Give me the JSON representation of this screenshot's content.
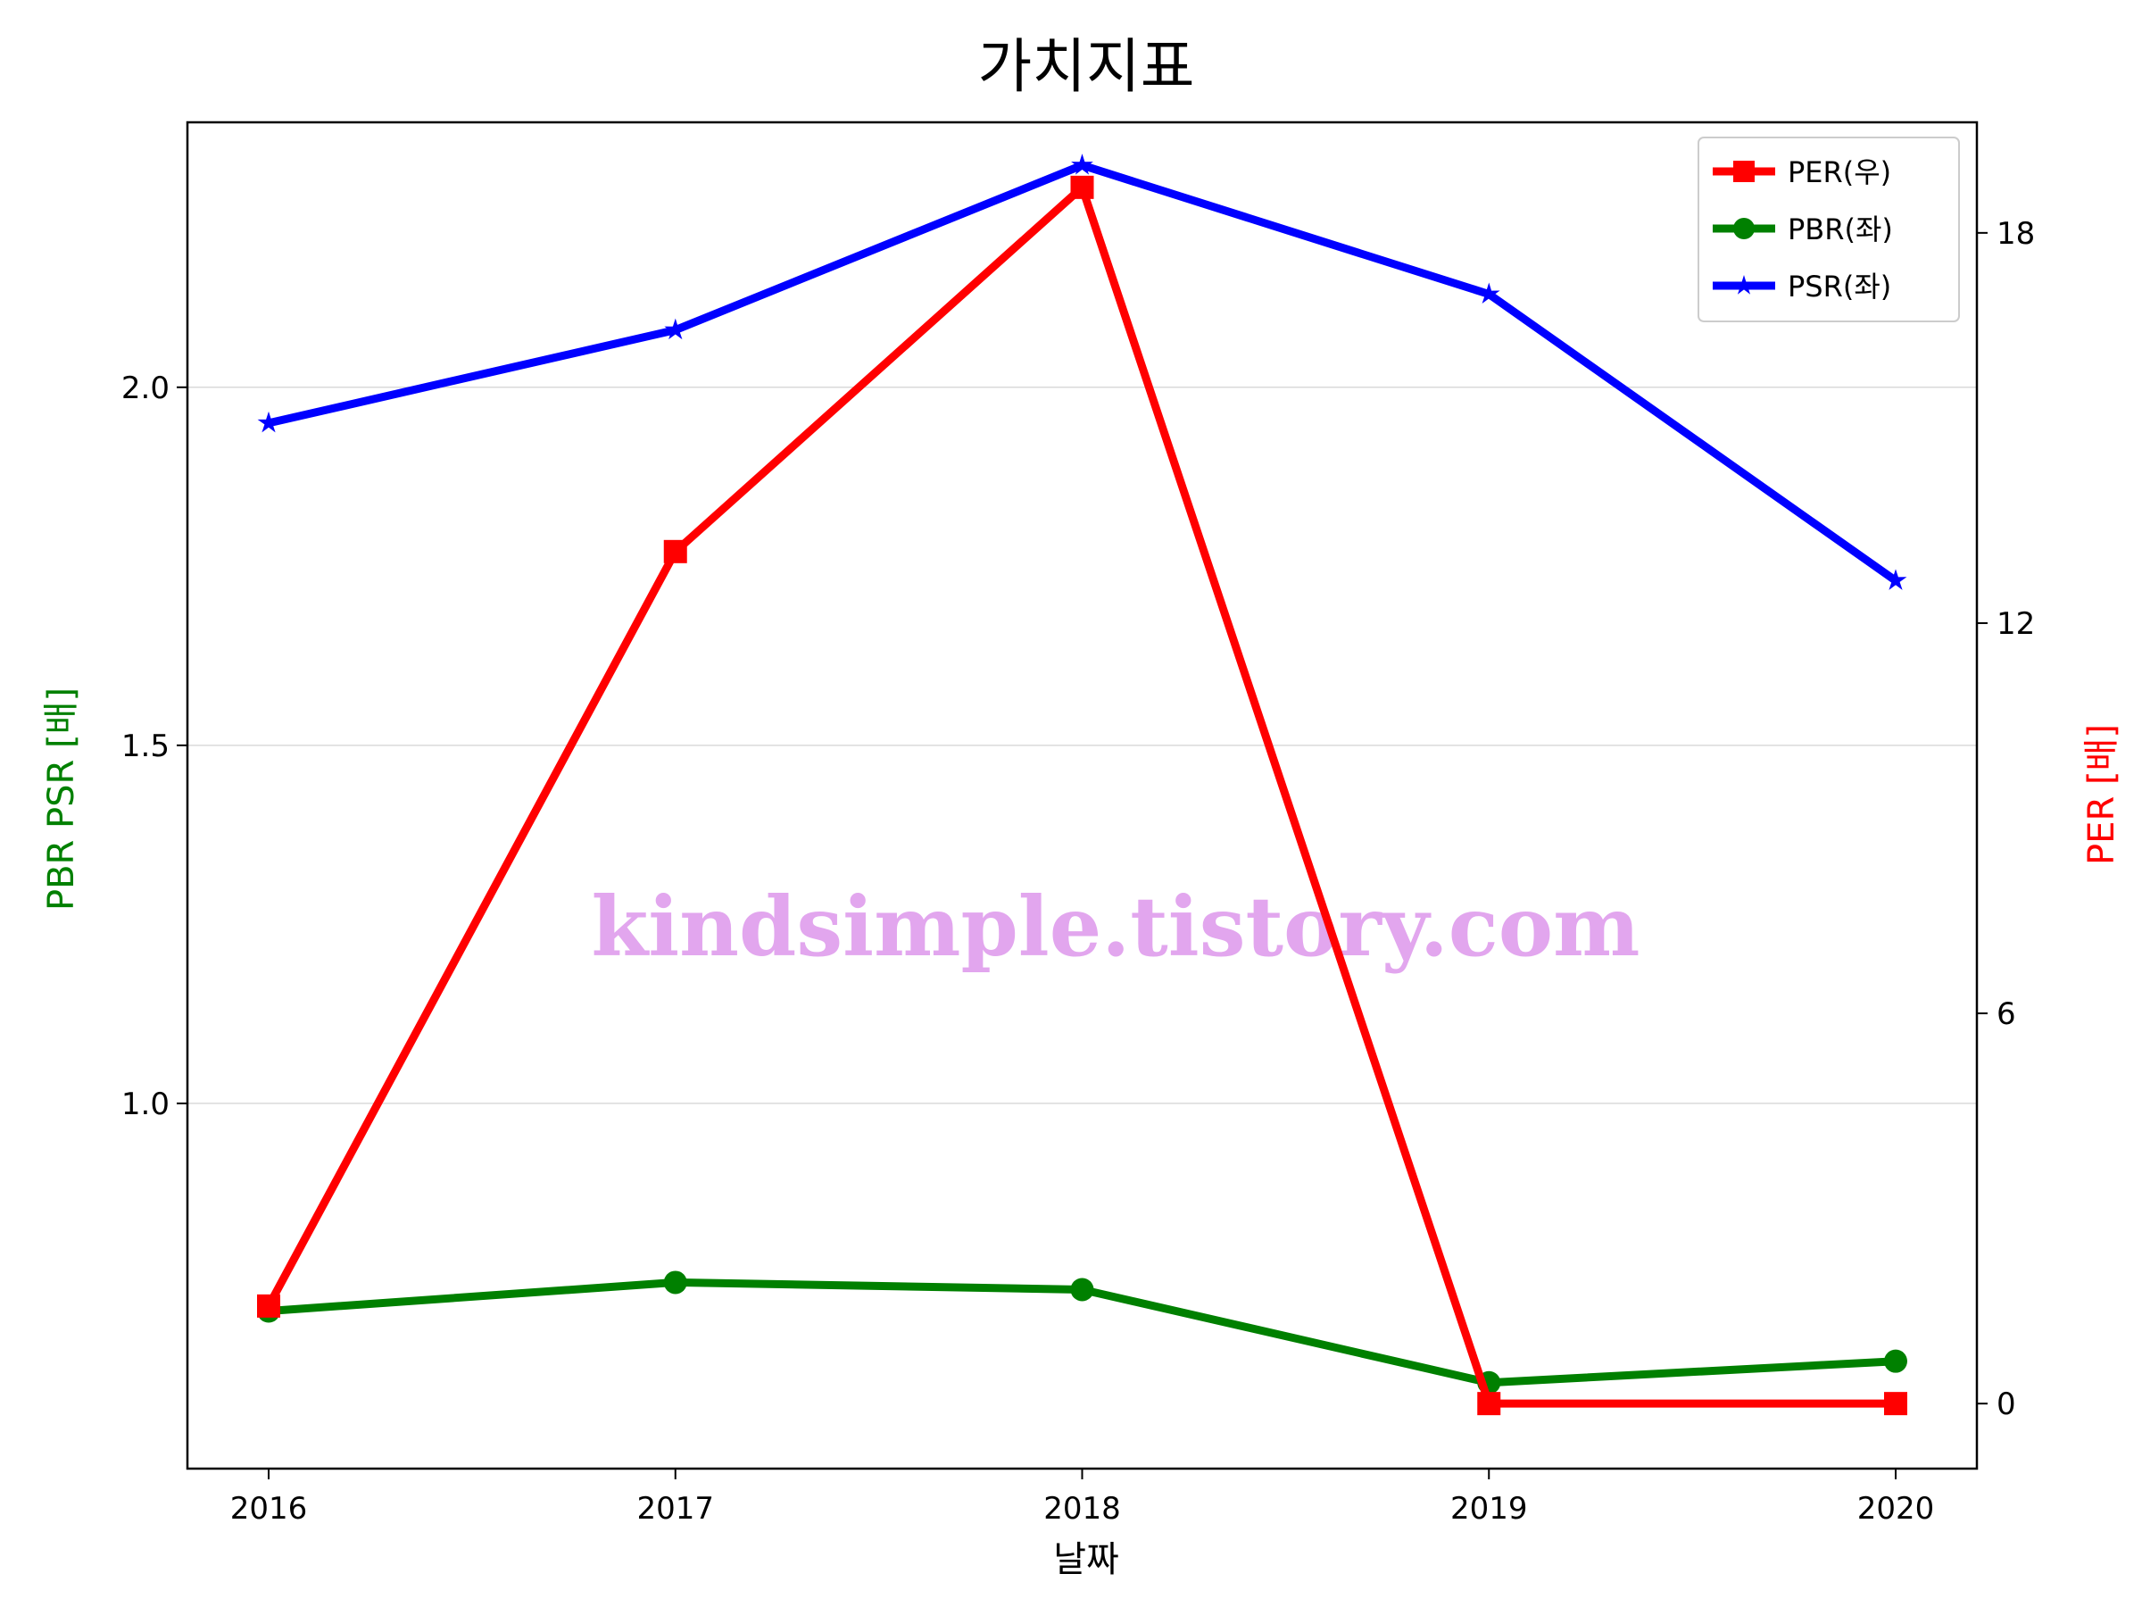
{
  "chart_data": {
    "type": "line",
    "title": "가치지표",
    "xlabel": "날짜",
    "ylabel_left": "PBR PSR [배]",
    "ylabel_right": "PER [배]",
    "categories": [
      "2016",
      "2017",
      "2018",
      "2019",
      "2020"
    ],
    "left_axis": {
      "ylim": [
        0.49,
        2.37
      ],
      "ticks": [
        1.0,
        1.5,
        2.0
      ],
      "tick_labels": [
        "1.0",
        "1.5",
        "2.0"
      ],
      "grid": true
    },
    "right_axis": {
      "ylim": [
        -1.0,
        19.7
      ],
      "ticks": [
        0,
        6,
        12,
        18
      ],
      "tick_labels": [
        "0",
        "6",
        "12",
        "18"
      ]
    },
    "series": [
      {
        "name": "PER(우)",
        "axis": "right",
        "color": "#ff0000",
        "marker": "square",
        "values": [
          1.5,
          13.1,
          18.7,
          0.0,
          0.0
        ]
      },
      {
        "name": "PBR(좌)",
        "axis": "left",
        "color": "#008000",
        "marker": "circle",
        "values": [
          0.71,
          0.75,
          0.74,
          0.61,
          0.64
        ]
      },
      {
        "name": "PSR(좌)",
        "axis": "left",
        "color": "#0000ff",
        "marker": "star",
        "values": [
          1.95,
          2.08,
          2.31,
          2.13,
          1.73
        ]
      }
    ],
    "legend": {
      "placement": "top-right"
    },
    "watermark": "kindsimple.tistory.com"
  }
}
